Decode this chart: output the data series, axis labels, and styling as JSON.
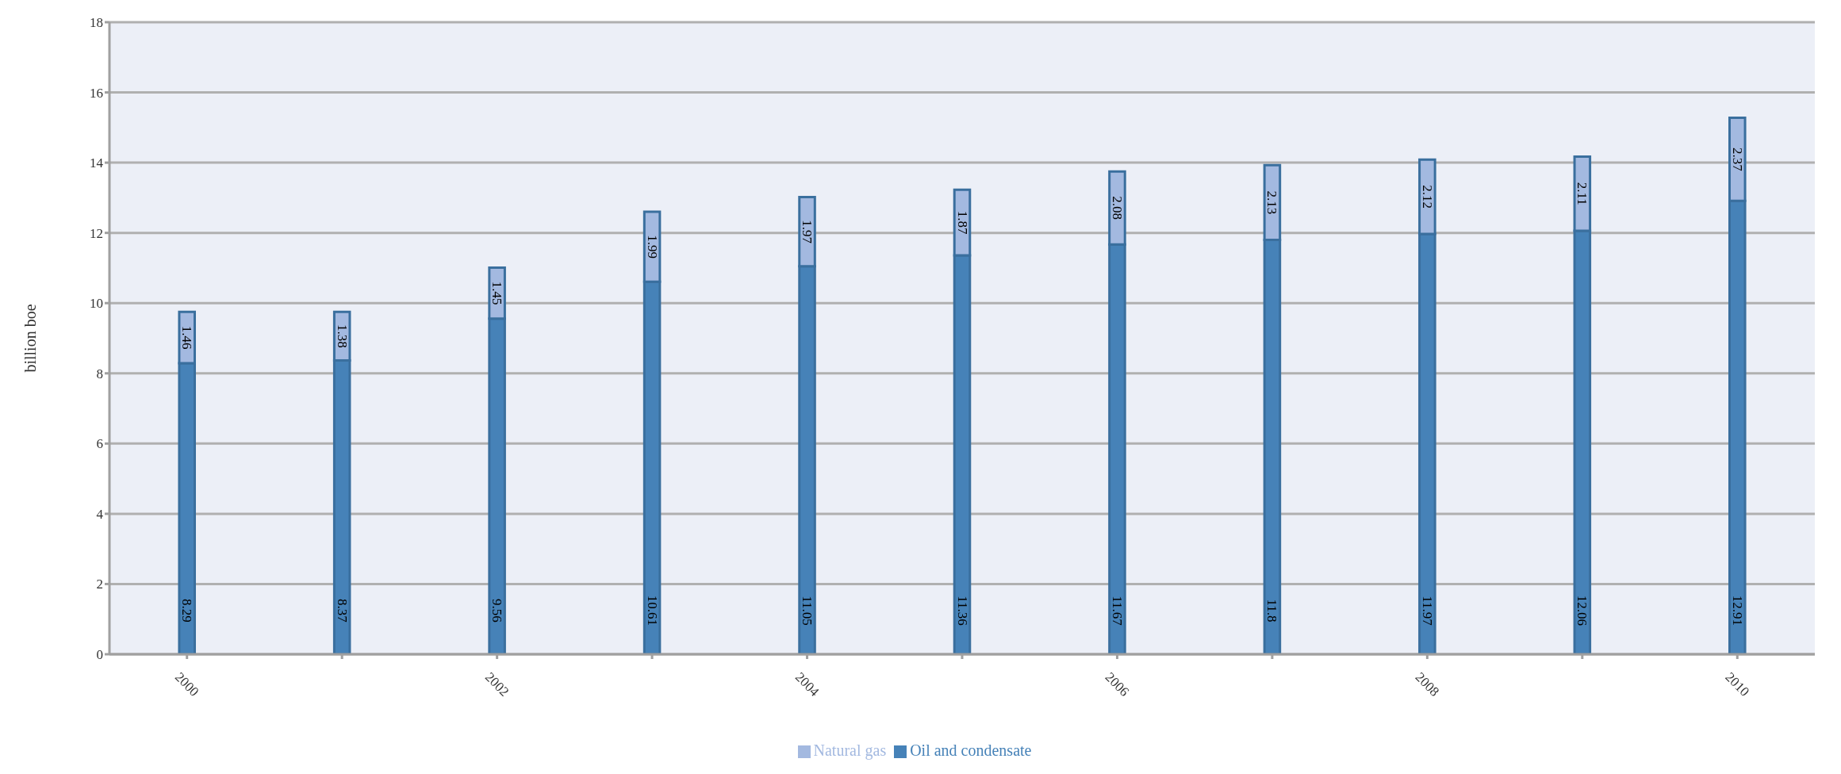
{
  "chart_data": {
    "type": "bar",
    "stacked": true,
    "ylabel": "billion boe",
    "categories": [
      "2000",
      null,
      "2002",
      null,
      "2004",
      null,
      "2006",
      null,
      "2008",
      null,
      "2010"
    ],
    "series": [
      {
        "name": "Oil and condensate",
        "color": "#4682b8",
        "values": [
          8.29,
          8.37,
          9.56,
          10.61,
          11.05,
          11.36,
          11.67,
          11.8,
          11.97,
          12.06,
          12.91
        ]
      },
      {
        "name": "Natural gas",
        "color": "#a3b9e0",
        "values": [
          1.46,
          1.38,
          1.45,
          1.99,
          1.97,
          1.87,
          2.08,
          2.13,
          2.12,
          2.11,
          2.37
        ]
      }
    ],
    "ylim": [
      0,
      18
    ],
    "yticks": [
      0,
      2,
      4,
      6,
      8,
      10,
      12,
      14,
      16,
      18
    ],
    "grid": "y",
    "legend": "bottom",
    "data_labels": true
  }
}
